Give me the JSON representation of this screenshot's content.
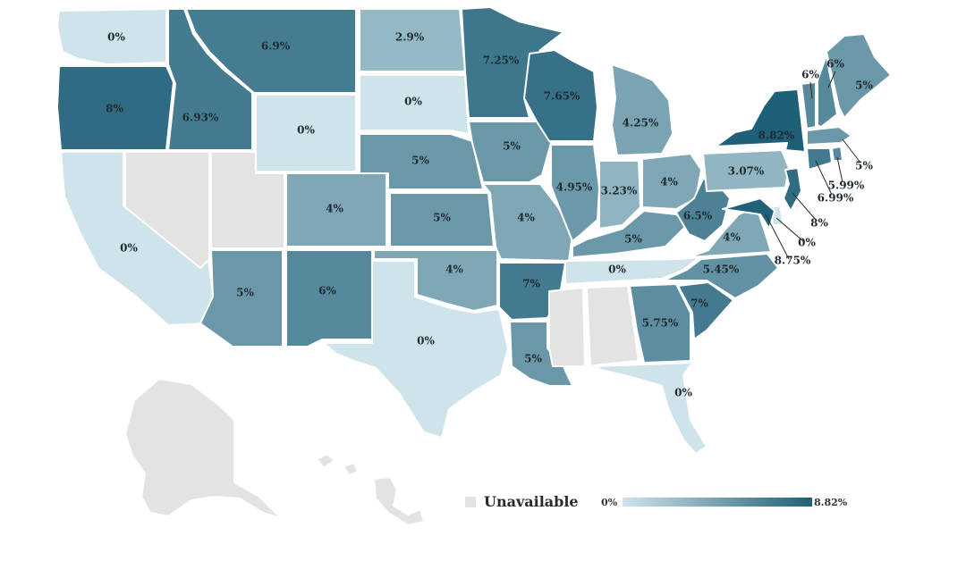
{
  "legend": {
    "unavailable_label": "Unavailable",
    "min_label": "0%",
    "max_label": "8.82%",
    "gradient_start": "#cfe3ea",
    "gradient_end": "#1f5f78",
    "unavailable_color": "#e3e3e3"
  },
  "states": [
    {
      "id": "WA",
      "value": 0,
      "label": "0%"
    },
    {
      "id": "OR",
      "value": 8,
      "label": "8%"
    },
    {
      "id": "CA",
      "value": 0,
      "label": "0%"
    },
    {
      "id": "NV",
      "value": null,
      "label": ""
    },
    {
      "id": "ID",
      "value": 6.93,
      "label": "6.93%"
    },
    {
      "id": "MT",
      "value": 6.9,
      "label": "6.9%"
    },
    {
      "id": "WY",
      "value": 0,
      "label": "0%"
    },
    {
      "id": "UT",
      "value": null,
      "label": ""
    },
    {
      "id": "AZ",
      "value": 5,
      "label": "5%"
    },
    {
      "id": "CO",
      "value": 4,
      "label": "4%"
    },
    {
      "id": "NM",
      "value": 6,
      "label": "6%"
    },
    {
      "id": "ND",
      "value": 2.9,
      "label": "2.9%"
    },
    {
      "id": "SD",
      "value": 0,
      "label": "0%"
    },
    {
      "id": "NE",
      "value": 5,
      "label": "5%"
    },
    {
      "id": "KS",
      "value": 5,
      "label": "5%"
    },
    {
      "id": "OK",
      "value": 4,
      "label": "4%"
    },
    {
      "id": "TX",
      "value": 0,
      "label": "0%"
    },
    {
      "id": "MN",
      "value": 7.25,
      "label": "7.25%"
    },
    {
      "id": "IA",
      "value": 5,
      "label": "5%"
    },
    {
      "id": "MO",
      "value": 4,
      "label": "4%"
    },
    {
      "id": "AR",
      "value": 7,
      "label": "7%"
    },
    {
      "id": "LA",
      "value": 5,
      "label": "5%"
    },
    {
      "id": "WI",
      "value": 7.65,
      "label": "7.65%"
    },
    {
      "id": "IL",
      "value": 4.95,
      "label": "4.95%"
    },
    {
      "id": "MI",
      "value": 4.25,
      "label": "4.25%"
    },
    {
      "id": "IN",
      "value": 3.23,
      "label": "3.23%"
    },
    {
      "id": "OH",
      "value": 4,
      "label": "4%"
    },
    {
      "id": "KY",
      "value": 5,
      "label": "5%"
    },
    {
      "id": "TN",
      "value": 0,
      "label": "0%"
    },
    {
      "id": "MS",
      "value": null,
      "label": ""
    },
    {
      "id": "AL",
      "value": null,
      "label": ""
    },
    {
      "id": "GA",
      "value": 5.75,
      "label": "5.75%"
    },
    {
      "id": "FL",
      "value": 0,
      "label": "0%"
    },
    {
      "id": "SC",
      "value": 7,
      "label": "7%"
    },
    {
      "id": "NC",
      "value": 5.45,
      "label": "5.45%"
    },
    {
      "id": "VA",
      "value": 4,
      "label": "4%"
    },
    {
      "id": "WV",
      "value": 6.5,
      "label": "6.5%"
    },
    {
      "id": "PA",
      "value": 3.07,
      "label": "3.07%"
    },
    {
      "id": "NY",
      "value": 8.82,
      "label": "8.82%"
    },
    {
      "id": "VT",
      "value": 6,
      "label": "6%"
    },
    {
      "id": "NH",
      "value": 6,
      "label": "6%"
    },
    {
      "id": "ME",
      "value": 5,
      "label": "5%"
    },
    {
      "id": "MA",
      "value": 5,
      "label": "5%"
    },
    {
      "id": "RI",
      "value": 5.99,
      "label": "5.99%"
    },
    {
      "id": "CT",
      "value": 6.99,
      "label": "6.99%"
    },
    {
      "id": "NJ",
      "value": 8,
      "label": "8%"
    },
    {
      "id": "DE",
      "value": 0,
      "label": "0%"
    },
    {
      "id": "MD",
      "value": 8.75,
      "label": "8.75%"
    },
    {
      "id": "AK",
      "value": null,
      "label": ""
    },
    {
      "id": "HI",
      "value": null,
      "label": ""
    }
  ]
}
